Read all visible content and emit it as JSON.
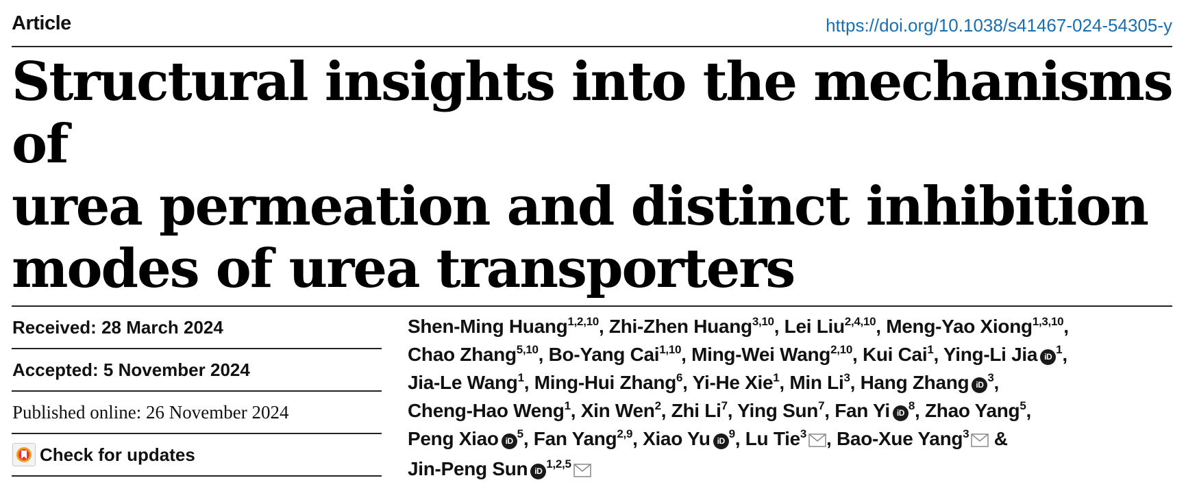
{
  "header": {
    "article_label": "Article",
    "doi": "https://doi.org/10.1038/s41467-024-54305-y"
  },
  "title_lines": [
    "Structural insights into the mechanisms of",
    "urea permeation and distinct inhibition",
    "modes of urea transporters"
  ],
  "dates": {
    "received": "Received: 28 March 2024",
    "accepted": "Accepted: 5 November 2024",
    "published": "Published online: 26 November 2024",
    "check_updates": "Check for updates"
  },
  "icons": {
    "orcid": "orcid-icon",
    "mail": "mail-icon",
    "check_updates": "check-for-updates-icon"
  },
  "author_lines": [
    [
      {
        "name": "Shen-Ming Huang",
        "aff": "1,2,10",
        "sep": ", "
      },
      {
        "name": "Zhi-Zhen Huang",
        "aff": "3,10",
        "sep": ", "
      },
      {
        "name": "Lei Liu",
        "aff": "2,4,10",
        "sep": ", "
      },
      {
        "name": "Meng-Yao Xiong",
        "aff": "1,3,10",
        "sep": ","
      }
    ],
    [
      {
        "name": "Chao Zhang",
        "aff": "5,10",
        "sep": ", "
      },
      {
        "name": "Bo-Yang Cai",
        "aff": "1,10",
        "sep": ", "
      },
      {
        "name": "Ming-Wei Wang",
        "aff": "2,10",
        "sep": ", "
      },
      {
        "name": "Kui Cai",
        "aff": "1",
        "sep": ", "
      },
      {
        "name": "Ying-Li Jia",
        "aff": "1",
        "orcid": true,
        "sep": ","
      }
    ],
    [
      {
        "name": "Jia-Le Wang",
        "aff": "1",
        "sep": ", "
      },
      {
        "name": "Ming-Hui Zhang",
        "aff": "6",
        "sep": ", "
      },
      {
        "name": "Yi-He Xie",
        "aff": "1",
        "sep": ", "
      },
      {
        "name": "Min Li",
        "aff": "3",
        "sep": ", "
      },
      {
        "name": "Hang Zhang",
        "aff": "3",
        "orcid": true,
        "sep": ","
      }
    ],
    [
      {
        "name": "Cheng-Hao Weng",
        "aff": "1",
        "sep": ", "
      },
      {
        "name": "Xin Wen",
        "aff": "2",
        "sep": ", "
      },
      {
        "name": "Zhi Li",
        "aff": "7",
        "sep": ", "
      },
      {
        "name": "Ying Sun",
        "aff": "7",
        "sep": ", "
      },
      {
        "name": "Fan Yi",
        "aff": "8",
        "orcid": true,
        "sep": ", "
      },
      {
        "name": "Zhao Yang",
        "aff": "5",
        "sep": ","
      }
    ],
    [
      {
        "name": "Peng Xiao",
        "aff": "5",
        "orcid": true,
        "sep": ", "
      },
      {
        "name": "Fan Yang",
        "aff": "2,9",
        "sep": ", "
      },
      {
        "name": "Xiao Yu",
        "aff": "9",
        "orcid": true,
        "sep": ", "
      },
      {
        "name": "Lu Tie",
        "aff": "3",
        "mail": true,
        "sep": ", "
      },
      {
        "name": "Bao-Xue Yang",
        "aff": "3",
        "mail": true,
        "sep": " &"
      }
    ],
    [
      {
        "name": "Jin-Peng Sun",
        "aff": "1,2,5",
        "orcid": true,
        "mail": true,
        "sep": ""
      }
    ]
  ]
}
